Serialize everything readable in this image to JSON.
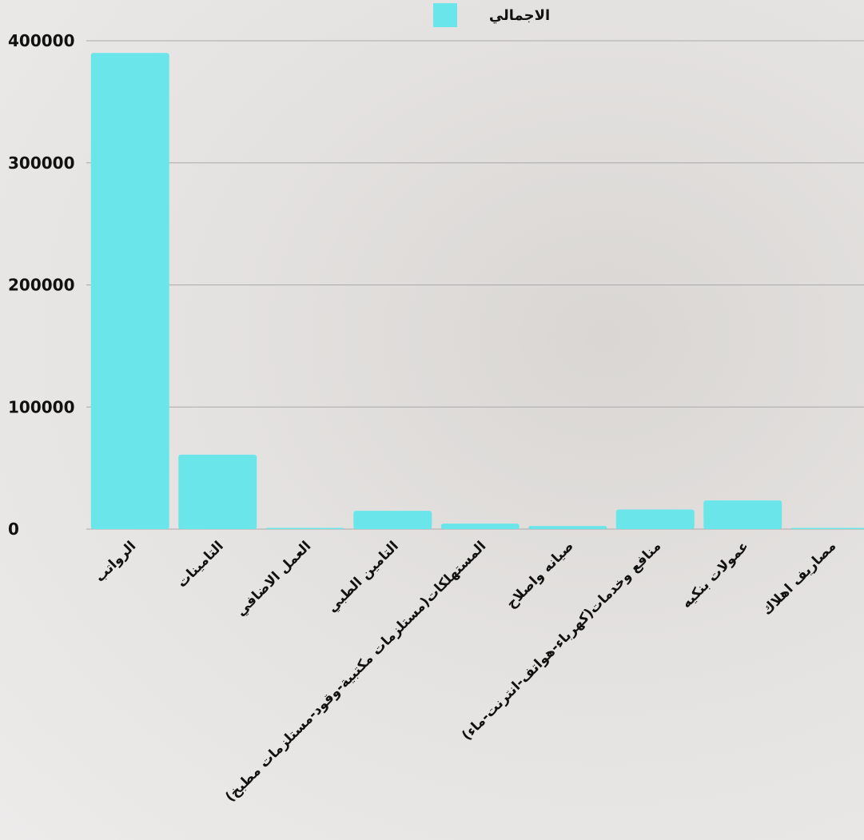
{
  "chart_data": {
    "type": "bar",
    "categories": [
      "الرواتب",
      "التامينات",
      "العمل الاضافي",
      "التامين الطبي",
      "المستهلكات(مستلزمات مكتبية-وقود-مستلزمات مطبخ)",
      "صيانه واصلاح",
      "منافع وخدمات(كهرباء-هواتف-انترنت-ماء)",
      "عمولات بنكيه",
      "مصاريف اهلاك"
    ],
    "series": [
      {
        "name": "الاجمالي",
        "color": "#6ae6ea",
        "values": [
          390000,
          61000,
          1000,
          15000,
          4500,
          2500,
          16000,
          23500,
          1000
        ]
      }
    ],
    "ylim": [
      0,
      400000
    ],
    "yticks": [
      0,
      100000,
      200000,
      300000,
      400000
    ],
    "grid": true,
    "legend": "top"
  }
}
